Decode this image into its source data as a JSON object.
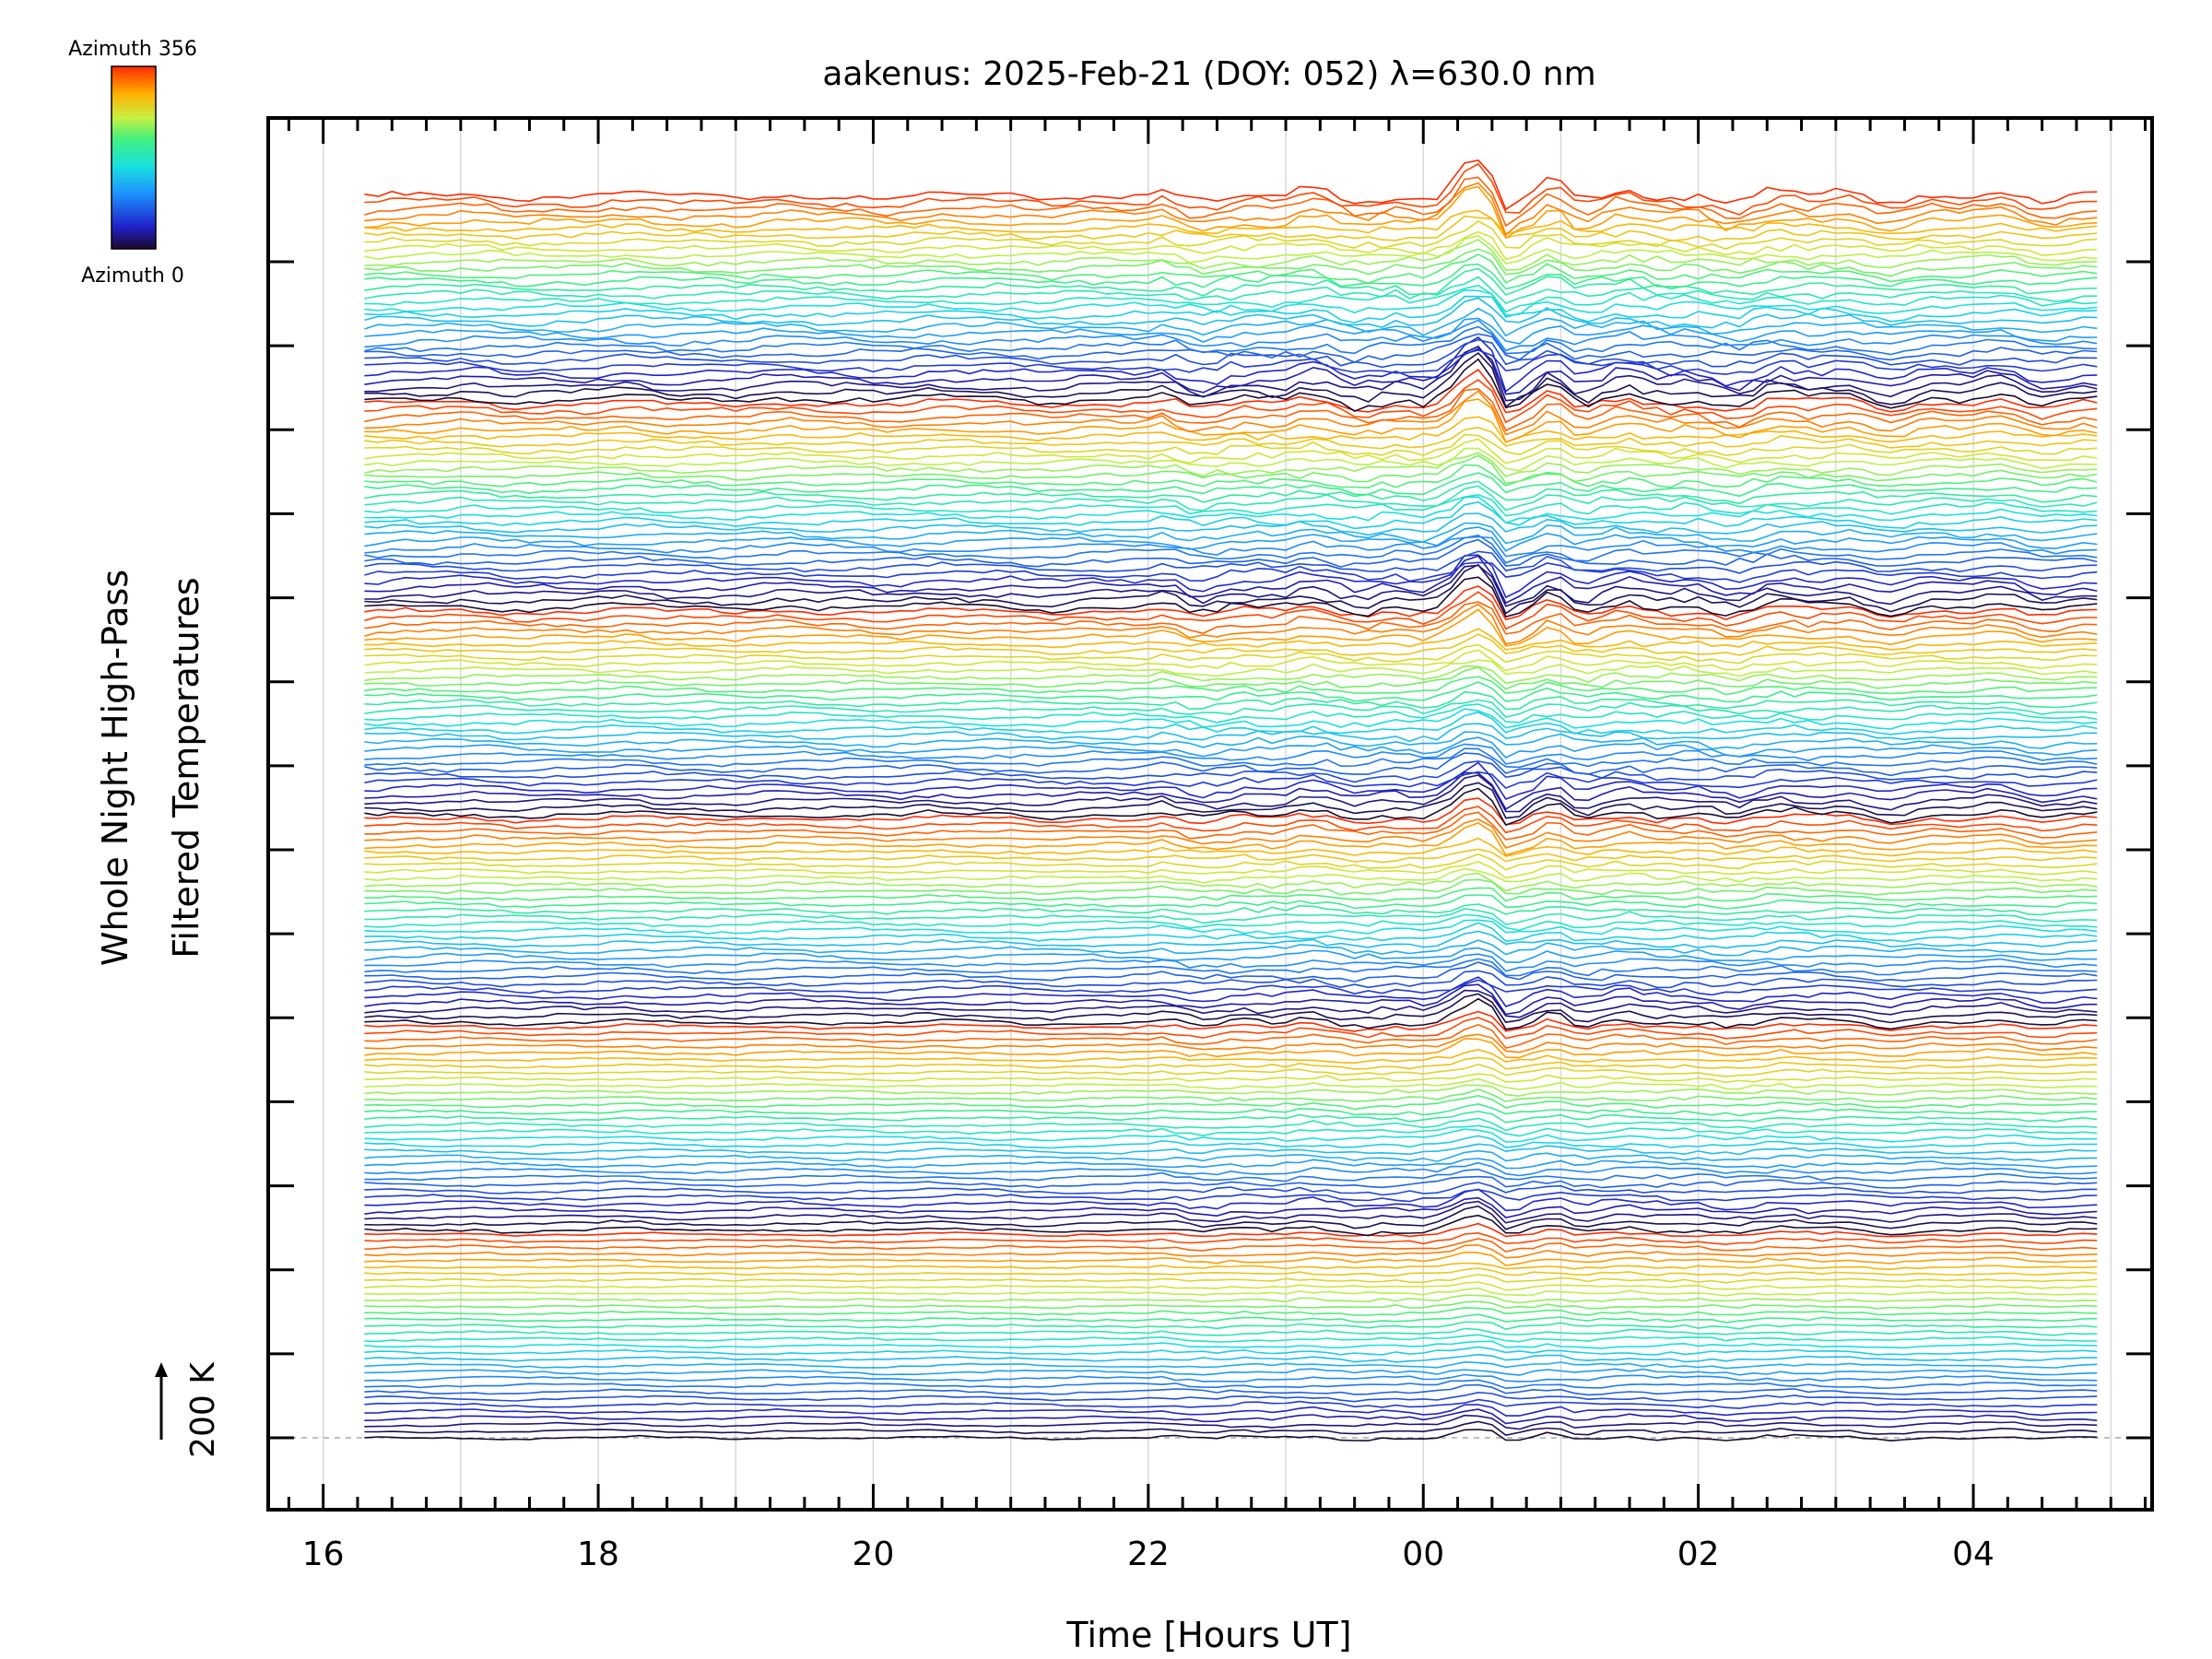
{
  "chart_data": {
    "type": "line",
    "title": "aakenus: 2025-Feb-21 (DOY: 052) λ=630.0 nm",
    "xlabel": "Time [Hours UT]",
    "ylabel_line1": "Whole Night High-Pass",
    "ylabel_line2": "Filtered Temperatures",
    "scale_label": "200 K",
    "x_ticks": [
      "16",
      "18",
      "20",
      "22",
      "00",
      "02",
      "04"
    ],
    "x_tick_hours": [
      16,
      18,
      20,
      22,
      24,
      26,
      28
    ],
    "x_range_hours": [
      15.6,
      29.3
    ],
    "data_time_range_hours": [
      16.3,
      28.85
    ],
    "sample_interval_hours": 0.1,
    "vertical_grid_hours": [
      16,
      17,
      18,
      19,
      20,
      21,
      22,
      23,
      24,
      25,
      26,
      27,
      28,
      29
    ],
    "offset_ticks": 15,
    "colorbar": {
      "label_max": "Azimuth 356",
      "label_min": "Azimuth 0",
      "min_color": "#1a0a2e",
      "max_color": "#ff2a00"
    },
    "series_groups": 6,
    "series_per_group": 32,
    "colors": {
      "axis": "#000000",
      "grid": "#d8d8d8",
      "baseline": "#aaaaaa",
      "background": "#ffffff"
    }
  }
}
